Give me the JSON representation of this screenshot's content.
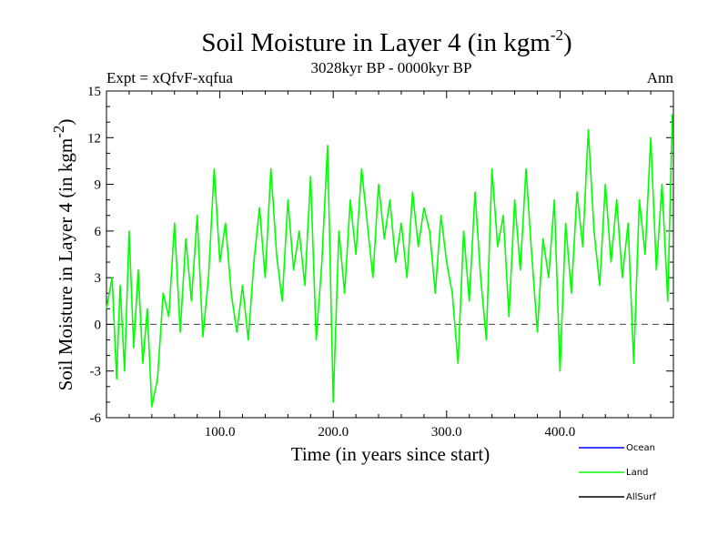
{
  "chart_data": {
    "type": "line",
    "title": "Soil Moisture in Layer 4 (in kgm",
    "title_sup": "-2",
    "title_close": ")",
    "subtitle": "3028kyr BP - 0000kyr BP",
    "expt_label": "Expt = xQfvF-xqfua",
    "season_label": "Ann",
    "xlabel": "Time (in years since start)",
    "ylabel": "Soil Moisture in Layer 4 (in kgm",
    "ylabel_sup": "-2",
    "ylabel_close": ")",
    "xlim": [
      0,
      500
    ],
    "ylim": [
      -6,
      15
    ],
    "y_ticks": [
      -6,
      -3,
      0,
      3,
      6,
      9,
      12,
      15
    ],
    "y_tick_labels": [
      "-6",
      "-3",
      "0",
      "3",
      "6",
      "9",
      "12",
      "15"
    ],
    "x_ticks": [
      100,
      200,
      300,
      400
    ],
    "x_tick_labels": [
      "100.0",
      "200.0",
      "300.0",
      "400.0"
    ],
    "zero_line": 0,
    "legend": [
      {
        "name": "Ocean",
        "color": "#0000ff"
      },
      {
        "name": "Land",
        "color": "#00ff00"
      },
      {
        "name": "AllSurf",
        "color": "#000000"
      }
    ],
    "series": [
      {
        "name": "Land",
        "color": "#00ff00",
        "x": [
          0,
          5,
          9,
          12,
          16,
          20,
          24,
          28,
          32,
          36,
          40,
          45,
          50,
          55,
          60,
          65,
          70,
          75,
          80,
          85,
          90,
          95,
          100,
          105,
          110,
          115,
          120,
          125,
          130,
          135,
          140,
          145,
          150,
          155,
          160,
          165,
          170,
          175,
          180,
          185,
          190,
          195,
          200,
          205,
          210,
          215,
          220,
          225,
          230,
          235,
          240,
          245,
          250,
          255,
          260,
          265,
          270,
          275,
          280,
          285,
          290,
          295,
          300,
          305,
          310,
          315,
          320,
          325,
          330,
          335,
          340,
          345,
          350,
          355,
          360,
          365,
          370,
          375,
          380,
          385,
          390,
          395,
          400,
          405,
          410,
          415,
          420,
          425,
          430,
          435,
          440,
          445,
          450,
          455,
          460,
          465,
          470,
          475,
          480,
          485,
          490,
          495,
          499
        ],
        "values": [
          1.0,
          3.0,
          -3.5,
          2.5,
          -3.0,
          6.0,
          -1.5,
          3.5,
          -2.5,
          1.0,
          -5.3,
          -3.5,
          2.0,
          0.5,
          6.5,
          -0.5,
          5.5,
          1.5,
          7.0,
          -0.8,
          3.0,
          10.0,
          4.0,
          6.5,
          2.0,
          -0.5,
          2.5,
          -1.0,
          4.0,
          7.5,
          3.0,
          10.0,
          4.5,
          1.5,
          8.0,
          3.5,
          6.0,
          2.5,
          9.5,
          -1.0,
          4.0,
          11.5,
          -5.0,
          6.0,
          2.0,
          8.0,
          4.5,
          10.0,
          6.5,
          3.0,
          9.0,
          5.5,
          8.0,
          4.0,
          6.5,
          3.0,
          8.5,
          5.0,
          7.5,
          6.0,
          2.0,
          7.0,
          4.0,
          2.0,
          -2.5,
          6.0,
          1.5,
          8.5,
          3.0,
          -1.0,
          10.0,
          5.0,
          7.0,
          0.5,
          8.0,
          3.5,
          10.0,
          4.5,
          -0.5,
          5.5,
          3.0,
          8.0,
          -3.0,
          6.5,
          2.0,
          8.5,
          5.0,
          12.5,
          6.0,
          2.5,
          9.0,
          4.0,
          8.0,
          3.0,
          6.5,
          -2.5,
          8.0,
          4.5,
          12.0,
          3.5,
          9.0,
          1.5,
          13.5
        ]
      }
    ]
  }
}
